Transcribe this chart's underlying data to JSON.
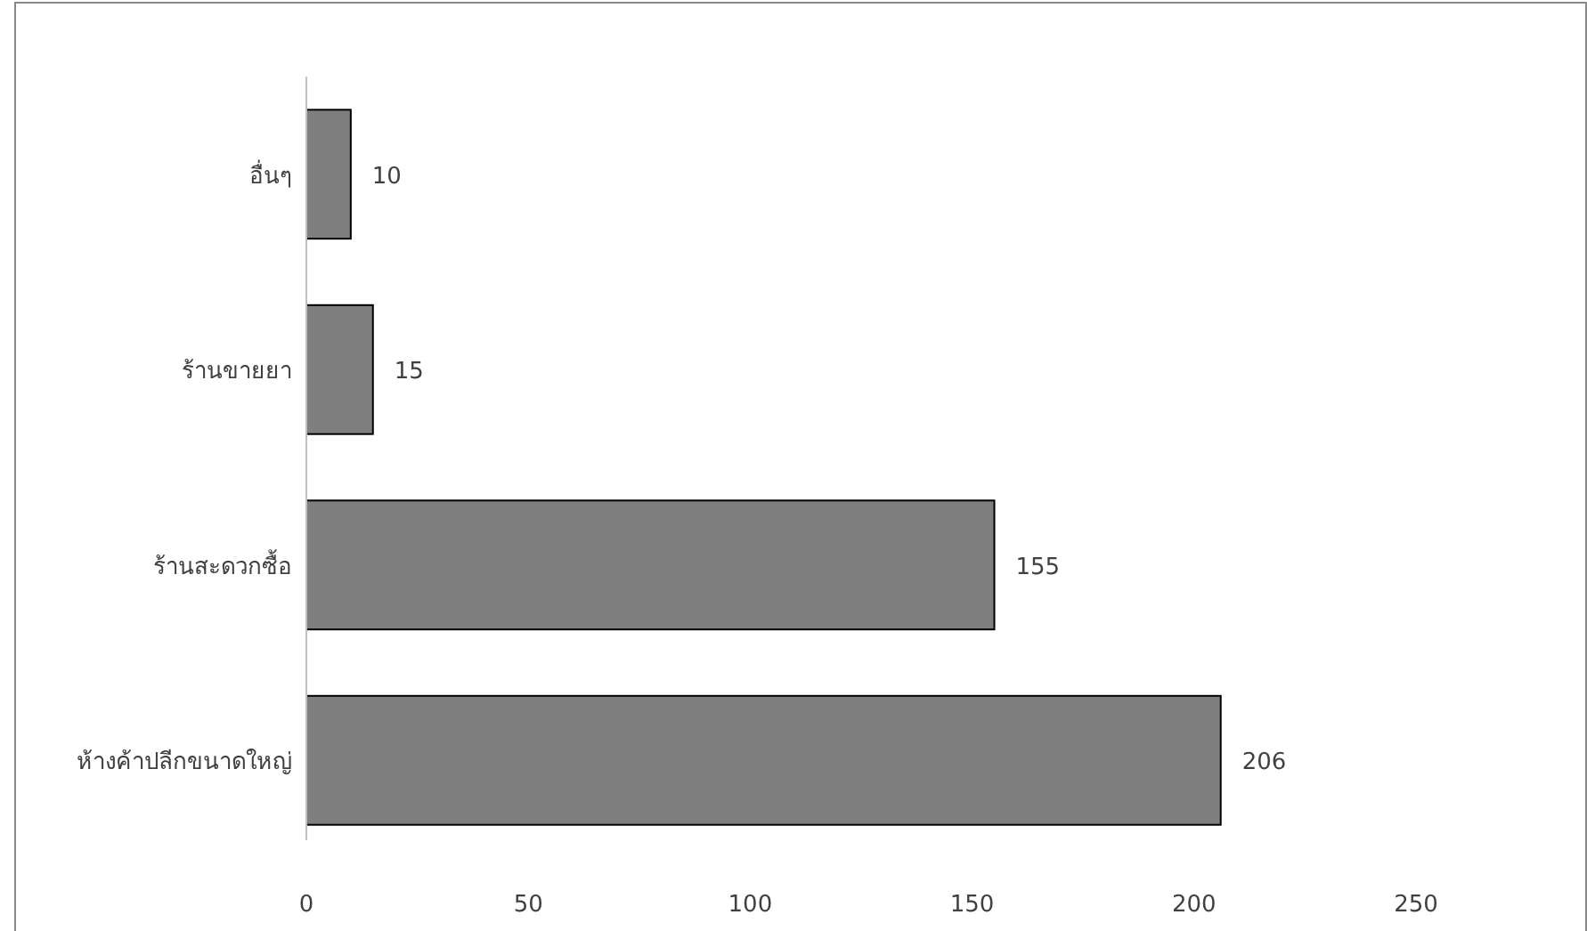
{
  "chart_data": {
    "type": "bar",
    "orientation": "horizontal",
    "categories": [
      "อื่นๆ",
      "ร้านขายยา",
      "ร้านสะดวกซื้อ",
      "ห้างค้าปลีกขนาดใหญ่"
    ],
    "values": [
      10,
      15,
      155,
      206
    ],
    "color": "#7f7f7f",
    "xlim": [
      0,
      250
    ],
    "xticks": [
      0,
      50,
      100,
      150,
      200,
      250
    ],
    "data_labels": true,
    "grid": false
  }
}
